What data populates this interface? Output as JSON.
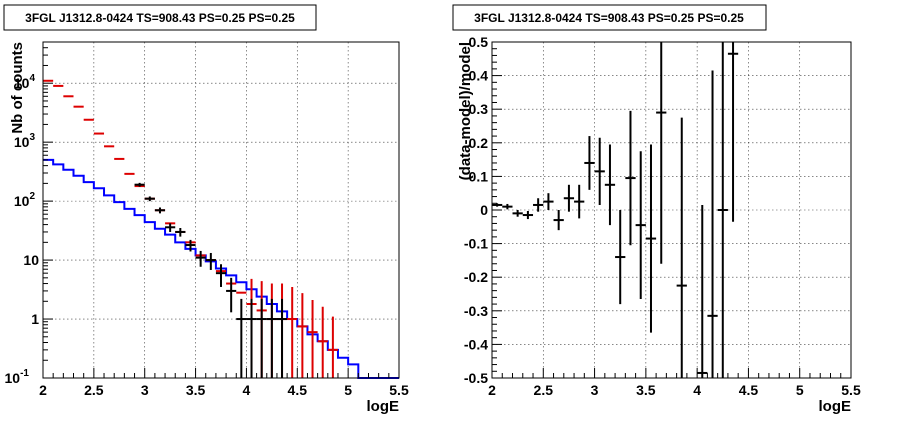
{
  "chart_data": [
    {
      "type": "line",
      "title": "3FGL J1312.8-0424 TS=908.43 PS=0.25 PS=0.25",
      "xlabel": "logE",
      "ylabel": "Nb of counts",
      "xlim": [
        2,
        5.5
      ],
      "ylim": [
        0.1,
        50000
      ],
      "yscale": "log",
      "grid": true,
      "xticks": [
        "2",
        "2.5",
        "3",
        "3.5",
        "4",
        "4.5",
        "5",
        "5.5"
      ],
      "yticks": [
        {
          "value": 0.1,
          "label": "10",
          "exp": "-1"
        },
        {
          "value": 1,
          "label": "1",
          "exp": ""
        },
        {
          "value": 10,
          "label": "10",
          "exp": ""
        },
        {
          "value": 100,
          "label": "10",
          "exp": "2"
        },
        {
          "value": 1000,
          "label": "10",
          "exp": "3"
        },
        {
          "value": 10000,
          "label": "10",
          "exp": "4"
        }
      ],
      "bin_edges": [
        2.0,
        2.1,
        2.2,
        2.3,
        2.4,
        2.5,
        2.6,
        2.7,
        2.8,
        2.9,
        3.0,
        3.1,
        3.2,
        3.3,
        3.4,
        3.5,
        3.6,
        3.7,
        3.8,
        3.9,
        4.0,
        4.1,
        4.2,
        4.3,
        4.4,
        4.5,
        4.6,
        4.7,
        4.8,
        4.9,
        5.0,
        5.1,
        5.2,
        5.3,
        5.4,
        5.5
      ],
      "series": [
        {
          "style": "step",
          "color": "#0000ff",
          "values": [
            500,
            420,
            340,
            270,
            210,
            165,
            125,
            96,
            74,
            58,
            44,
            34,
            27,
            20,
            15.5,
            12,
            9.5,
            7.2,
            5.5,
            4.2,
            3.2,
            2.4,
            1.8,
            1.35,
            1.0,
            0.75,
            0.55,
            0.42,
            0.3,
            0.22,
            0.17,
            0.1,
            0.1,
            0.1,
            0.1
          ]
        },
        {
          "style": "errorbar",
          "color": "#dd0000",
          "x": [
            2.05,
            2.15,
            2.25,
            2.35,
            2.45,
            2.55,
            2.65,
            2.75,
            2.85,
            2.95,
            3.05,
            3.15,
            3.25,
            3.35,
            3.45,
            3.55,
            3.65,
            3.75,
            3.85,
            3.95,
            4.05,
            4.15,
            4.25,
            4.35,
            4.45,
            4.55,
            4.65,
            4.75,
            4.85
          ],
          "y": [
            11000,
            9000,
            6000,
            4000,
            2400,
            1400,
            850,
            520,
            290,
            180,
            110,
            70,
            42,
            30,
            20,
            12,
            10,
            6.5,
            4,
            2.8,
            1.8,
            1.4,
            1,
            1,
            1,
            0.75,
            0.6,
            0.42,
            0.3
          ],
          "err_lo": [
            0,
            0,
            0,
            0,
            0,
            0,
            0,
            0,
            0,
            0,
            0,
            0,
            0,
            0,
            0,
            0,
            0,
            0,
            0,
            0,
            1.7,
            1.3,
            0.95,
            0.95,
            0.95,
            0.7,
            0.55,
            0.4,
            0.28
          ],
          "err_hi": [
            0,
            0,
            0,
            0,
            0,
            0,
            0,
            0,
            0,
            0,
            0,
            0,
            0,
            0,
            0,
            0,
            0,
            0,
            0,
            0,
            3,
            3,
            3,
            3,
            2.5,
            2,
            1.5,
            1.2,
            0.8
          ]
        },
        {
          "style": "errorbar",
          "color": "#000000",
          "x": [
            2.95,
            3.05,
            3.15,
            3.25,
            3.35,
            3.45,
            3.55,
            3.65,
            3.75,
            3.85,
            3.95,
            4.05,
            4.15,
            4.25,
            4.35
          ],
          "y": [
            190,
            110,
            70,
            36,
            30,
            18,
            11,
            10,
            6,
            3,
            1,
            1,
            1,
            1,
            1
          ],
          "err_lo": [
            14,
            10,
            8,
            6,
            5,
            4,
            3.3,
            3.2,
            2.5,
            1.7,
            0.98,
            0.98,
            0.98,
            0.98,
            0.98
          ],
          "err_hi": [
            14,
            10,
            8,
            6,
            5,
            4,
            3.3,
            3.2,
            2.5,
            2,
            1.2,
            1.2,
            1.2,
            1.2,
            1.2
          ]
        }
      ]
    },
    {
      "type": "scatter",
      "title": "3FGL J1312.8-0424 TS=908.43 PS=0.25 PS=0.25",
      "xlabel": "logE",
      "ylabel": "(data-model)/model",
      "xlim": [
        2,
        5.5
      ],
      "ylim": [
        -0.5,
        0.5
      ],
      "grid": true,
      "xticks": [
        "2",
        "2.5",
        "3",
        "3.5",
        "4",
        "4.5",
        "5",
        "5.5"
      ],
      "yticks": [
        "-0.5",
        "-0.4",
        "-0.3",
        "-0.2",
        "-0.1",
        "0",
        "0.1",
        "0.2",
        "0.3",
        "0.4",
        "0.5"
      ],
      "series": [
        {
          "style": "errorbar",
          "color": "#000000",
          "x": [
            2.05,
            2.15,
            2.25,
            2.35,
            2.45,
            2.55,
            2.65,
            2.75,
            2.85,
            2.95,
            3.05,
            3.15,
            3.25,
            3.35,
            3.45,
            3.55,
            3.65,
            3.85,
            4.05,
            4.15,
            4.25,
            4.35
          ],
          "y": [
            0.015,
            0.01,
            -0.01,
            -0.015,
            0.015,
            0.025,
            -0.03,
            0.035,
            0.025,
            0.14,
            0.115,
            0.075,
            -0.14,
            0.095,
            -0.045,
            -0.085,
            0.29,
            -0.225,
            -0.485,
            -0.315,
            0.0,
            0.465
          ],
          "err": [
            0.005,
            0.008,
            0.01,
            0.012,
            0.02,
            0.025,
            0.03,
            0.04,
            0.05,
            0.08,
            0.1,
            0.12,
            0.14,
            0.2,
            0.22,
            0.28,
            0.45,
            0.5,
            0.5,
            0.73,
            0.52,
            0.5
          ]
        }
      ]
    }
  ]
}
